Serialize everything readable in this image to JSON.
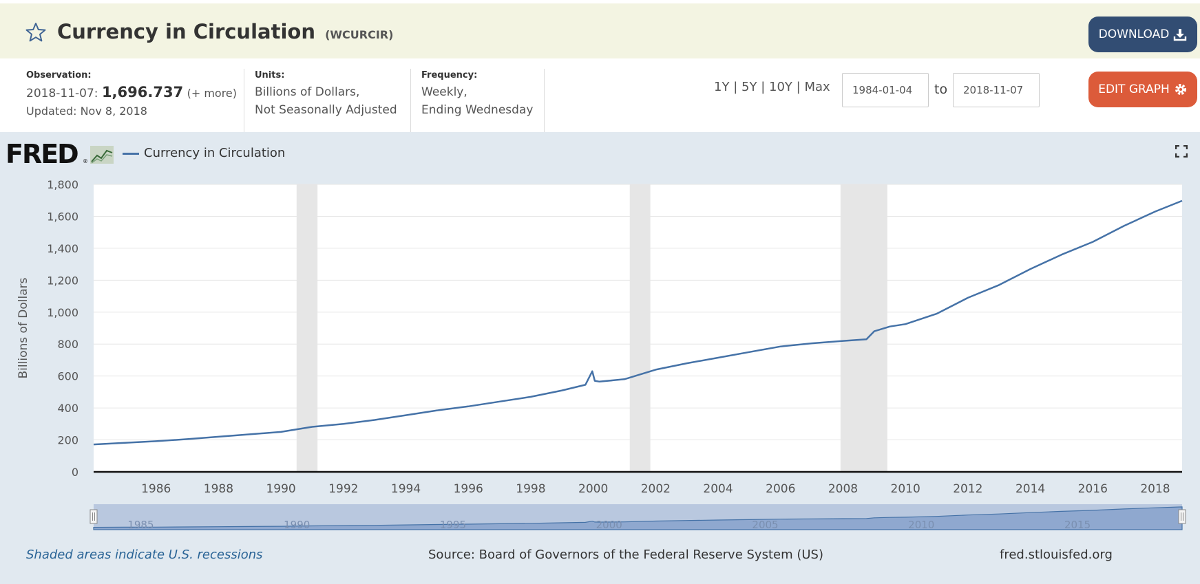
{
  "header": {
    "title": "Currency in Circulation",
    "series_id": "(WCURCIR)",
    "download_label": "DOWNLOAD"
  },
  "meta": {
    "observation_label": "Observation:",
    "observation_date": "2018-11-07:",
    "observation_value": "1,696.737",
    "observation_more": "(+ more)",
    "updated": "Updated: Nov 8, 2018",
    "units_label": "Units:",
    "units_line1": "Billions of Dollars,",
    "units_line2": "Not Seasonally Adjusted",
    "frequency_label": "Frequency:",
    "frequency_line1": "Weekly,",
    "frequency_line2": "Ending Wednesday"
  },
  "controls": {
    "range_1y": "1Y",
    "range_5y": "5Y",
    "range_10y": "10Y",
    "range_max": "Max",
    "sep": "|",
    "date_start": "1984-01-04",
    "to_label": "to",
    "date_end": "2018-11-07",
    "edit_label": "EDIT GRAPH"
  },
  "graph": {
    "logo_text": "FRED",
    "logo_reg": "®",
    "legend_label": "Currency in Circulation",
    "series_color": "#4572a7"
  },
  "footer": {
    "recession_note": "Shaded areas indicate U.S. recessions",
    "source": "Source: Board of Governors of the Federal Reserve System (US)",
    "site": "fred.stlouisfed.org"
  },
  "chart_data": {
    "type": "line",
    "title": "Currency in Circulation",
    "xlabel": "",
    "ylabel": "Billions of Dollars",
    "xlim": [
      1984.0,
      2018.86
    ],
    "ylim": [
      0,
      1800
    ],
    "yticks": [
      0,
      200,
      400,
      600,
      800,
      1000,
      1200,
      1400,
      1600,
      1800
    ],
    "ytick_labels": [
      "0",
      "200",
      "400",
      "600",
      "800",
      "1,000",
      "1,200",
      "1,400",
      "1,600",
      "1,800"
    ],
    "xticks": [
      1986,
      1988,
      1990,
      1992,
      1994,
      1996,
      1998,
      2000,
      2002,
      2004,
      2006,
      2008,
      2010,
      2012,
      2014,
      2016,
      2018
    ],
    "grid": true,
    "legend": "top-left",
    "recessions": [
      [
        1990.5,
        1991.17
      ],
      [
        2001.17,
        2001.83
      ],
      [
        2007.92,
        2009.42
      ]
    ],
    "navigator_labels": [
      1985,
      1990,
      1995,
      2000,
      2005,
      2010,
      2015
    ],
    "series": [
      {
        "name": "Currency in Circulation",
        "x": [
          1984.0,
          1985.0,
          1986.0,
          1987.0,
          1988.0,
          1989.0,
          1990.0,
          1991.0,
          1992.0,
          1993.0,
          1994.0,
          1995.0,
          1996.0,
          1997.0,
          1998.0,
          1999.0,
          1999.75,
          1999.97,
          2000.05,
          2000.2,
          2001.0,
          2002.0,
          2003.0,
          2004.0,
          2005.0,
          2006.0,
          2007.0,
          2008.0,
          2008.75,
          2009.0,
          2009.5,
          2010.0,
          2011.0,
          2012.0,
          2013.0,
          2014.0,
          2015.0,
          2016.0,
          2017.0,
          2018.0,
          2018.86
        ],
        "values": [
          172,
          182,
          192,
          205,
          220,
          235,
          250,
          282,
          300,
          325,
          355,
          385,
          410,
          440,
          470,
          510,
          545,
          630,
          570,
          565,
          580,
          640,
          680,
          715,
          750,
          785,
          805,
          820,
          830,
          880,
          910,
          925,
          990,
          1090,
          1170,
          1270,
          1360,
          1440,
          1540,
          1630,
          1697
        ]
      }
    ]
  }
}
